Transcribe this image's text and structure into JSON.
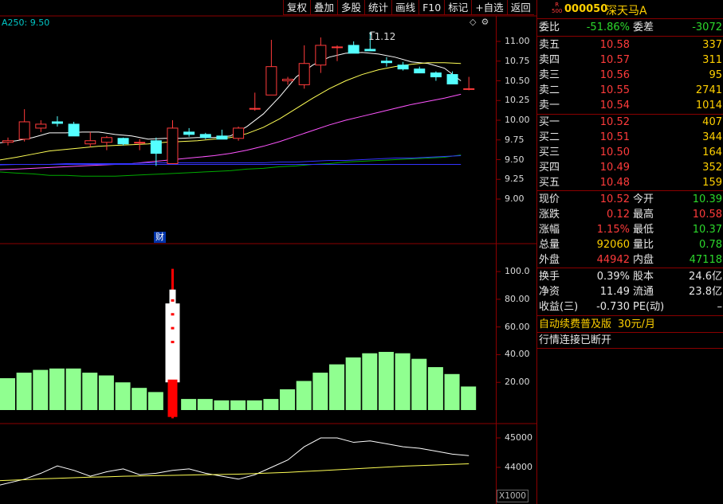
{
  "toolbar": [
    "复权",
    "叠加",
    "多股",
    "统计",
    "画线",
    "F10",
    "标记",
    "+自选",
    "返回"
  ],
  "ma_label": "A250: 9.50",
  "peak_price_label": "11.12",
  "fin_badge": "财",
  "unit_label": "X1000",
  "price_axis": [
    "11.00",
    "10.75",
    "10.50",
    "10.25",
    "10.00",
    "9.75",
    "9.50",
    "9.25",
    "9.00"
  ],
  "indicator_axis": [
    "100.0",
    "80.00",
    "60.00",
    "40.00",
    "20.00"
  ],
  "volume_axis": [
    "45000",
    "44000"
  ],
  "colors": {
    "up": "#ff3b3b",
    "down": "#54ffff",
    "ma5": "#ffffff",
    "ma10": "#ffff55",
    "ma20": "#ff55ff",
    "ma60": "#00aa00",
    "ma120": "#3333ff",
    "bar": "#90ff90"
  },
  "candles": [
    {
      "o": 9.72,
      "h": 9.78,
      "l": 9.68,
      "c": 9.74
    },
    {
      "o": 9.76,
      "h": 10.14,
      "l": 9.73,
      "c": 9.98
    },
    {
      "o": 9.9,
      "h": 10.0,
      "l": 9.85,
      "c": 9.95
    },
    {
      "o": 9.98,
      "h": 10.05,
      "l": 9.92,
      "c": 9.96
    },
    {
      "o": 9.95,
      "h": 9.98,
      "l": 9.8,
      "c": 9.8
    },
    {
      "o": 9.7,
      "h": 9.85,
      "l": 9.66,
      "c": 9.74
    },
    {
      "o": 9.72,
      "h": 9.8,
      "l": 9.62,
      "c": 9.78
    },
    {
      "o": 9.77,
      "h": 9.78,
      "l": 9.68,
      "c": 9.7
    },
    {
      "o": 9.72,
      "h": 9.76,
      "l": 9.62,
      "c": 9.72
    },
    {
      "o": 9.74,
      "h": 9.78,
      "l": 9.42,
      "c": 9.58
    },
    {
      "o": 9.45,
      "h": 10.0,
      "l": 9.45,
      "c": 9.9
    },
    {
      "o": 9.85,
      "h": 9.9,
      "l": 9.79,
      "c": 9.82
    },
    {
      "o": 9.82,
      "h": 9.84,
      "l": 9.76,
      "c": 9.78
    },
    {
      "o": 9.8,
      "h": 9.88,
      "l": 9.76,
      "c": 9.76
    },
    {
      "o": 9.77,
      "h": 9.92,
      "l": 9.74,
      "c": 9.9
    },
    {
      "o": 10.15,
      "h": 10.35,
      "l": 10.12,
      "c": 10.15
    },
    {
      "o": 10.32,
      "h": 11.02,
      "l": 10.32,
      "c": 10.68
    },
    {
      "o": 10.5,
      "h": 10.55,
      "l": 10.45,
      "c": 10.52
    },
    {
      "o": 10.45,
      "h": 10.95,
      "l": 10.4,
      "c": 10.72
    },
    {
      "o": 10.7,
      "h": 11.05,
      "l": 10.6,
      "c": 10.95
    },
    {
      "o": 10.93,
      "h": 10.95,
      "l": 10.75,
      "c": 10.93
    },
    {
      "o": 10.95,
      "h": 11.0,
      "l": 10.85,
      "c": 10.85
    },
    {
      "o": 10.9,
      "h": 11.12,
      "l": 10.88,
      "c": 10.88
    },
    {
      "o": 10.75,
      "h": 10.8,
      "l": 10.68,
      "c": 10.73
    },
    {
      "o": 10.7,
      "h": 10.74,
      "l": 10.63,
      "c": 10.65
    },
    {
      "o": 10.65,
      "h": 10.68,
      "l": 10.6,
      "c": 10.6
    },
    {
      "o": 10.6,
      "h": 10.62,
      "l": 10.5,
      "c": 10.55
    },
    {
      "o": 10.58,
      "h": 10.62,
      "l": 10.46,
      "c": 10.46
    },
    {
      "o": 10.4,
      "h": 10.55,
      "l": 10.38,
      "c": 10.4
    }
  ],
  "ma_lines": {
    "ma5": [
      9.7,
      9.74,
      9.78,
      9.84,
      9.84,
      9.85,
      9.85,
      9.82,
      9.8,
      9.76,
      9.77,
      9.77,
      9.78,
      9.78,
      9.8,
      9.92,
      10.08,
      10.3,
      10.55,
      10.7,
      10.8,
      10.85,
      10.86,
      10.84,
      10.8,
      10.74,
      10.72,
      10.66,
      10.5
    ],
    "ma10": [
      9.48,
      9.53,
      9.57,
      9.61,
      9.63,
      9.65,
      9.67,
      9.68,
      9.69,
      9.7,
      9.72,
      9.73,
      9.74,
      9.76,
      9.78,
      9.83,
      9.91,
      10.02,
      10.15,
      10.28,
      10.4,
      10.5,
      10.58,
      10.64,
      10.68,
      10.71,
      10.73,
      10.73,
      10.72
    ],
    "ma20": [
      9.37,
      9.38,
      9.39,
      9.4,
      9.41,
      9.42,
      9.43,
      9.44,
      9.45,
      9.47,
      9.49,
      9.51,
      9.53,
      9.55,
      9.58,
      9.62,
      9.67,
      9.73,
      9.8,
      9.87,
      9.94,
      10.0,
      10.05,
      10.1,
      10.15,
      10.2,
      10.24,
      10.28,
      10.33
    ],
    "ma60": [
      9.35,
      9.33,
      9.32,
      9.3,
      9.3,
      9.29,
      9.29,
      9.29,
      9.3,
      9.31,
      9.32,
      9.33,
      9.34,
      9.35,
      9.36,
      9.38,
      9.39,
      9.41,
      9.42,
      9.44,
      9.45,
      9.47,
      9.48,
      9.49,
      9.5,
      9.51,
      9.52,
      9.53,
      9.56
    ],
    "ma120": [
      9.43,
      9.44,
      9.44,
      9.44,
      9.45,
      9.45,
      9.45,
      9.45,
      9.45,
      9.46,
      9.46,
      9.46,
      9.46,
      9.46,
      9.46,
      9.46,
      9.46,
      9.47,
      9.47,
      9.48,
      9.49,
      9.49,
      9.5,
      9.51,
      9.52,
      9.52,
      9.53,
      9.54,
      9.55
    ],
    "flat": [
      9.44,
      9.44,
      9.44,
      9.44,
      9.44,
      9.44,
      9.44,
      9.44,
      9.44,
      9.44,
      9.44,
      9.44,
      9.44,
      9.44,
      9.44,
      9.44,
      9.44,
      9.44,
      9.44,
      9.44,
      9.44,
      9.44,
      9.44,
      9.44,
      9.44,
      9.44,
      9.44,
      9.44,
      9.44
    ]
  },
  "indicator_bars": [
    23,
    27,
    29,
    30,
    30,
    27,
    25,
    20,
    16,
    13,
    12,
    8,
    8,
    7,
    7,
    7,
    8,
    15,
    21,
    27,
    33,
    38,
    41,
    42,
    41,
    37,
    31,
    26,
    17
  ],
  "indicator_spike": {
    "index": 10,
    "top": 102,
    "body_top": 87,
    "body_bottom": 20,
    "bottom": -6
  },
  "volume_lines": {
    "white": [
      43400,
      43600,
      43800,
      44050,
      43900,
      43700,
      43850,
      43950,
      43750,
      43800,
      43900,
      43950,
      43800,
      43700,
      43600,
      43750,
      44000,
      44250,
      44700,
      45000,
      45000,
      44850,
      44900,
      44800,
      44700,
      44650,
      44550,
      44450,
      44400
    ],
    "yellow": [
      43550,
      43580,
      43610,
      43630,
      43650,
      43670,
      43680,
      43700,
      43710,
      43720,
      43730,
      43740,
      43750,
      43760,
      43770,
      43790,
      43810,
      43830,
      43860,
      43890,
      43920,
      43950,
      43980,
      44010,
      44040,
      44060,
      44080,
      44100,
      44120
    ]
  },
  "quote": {
    "badge_top": "R",
    "badge_bottom": "500",
    "code": "000050",
    "name": "深天马A",
    "weibi_label": "委比",
    "weibi_value": "-51.86%",
    "weicha_label": "委差",
    "weicha_value": "-3072",
    "asks": [
      {
        "label": "卖五",
        "price": "10.58",
        "vol": "337"
      },
      {
        "label": "卖四",
        "price": "10.57",
        "vol": "311"
      },
      {
        "label": "卖三",
        "price": "10.56",
        "vol": "95"
      },
      {
        "label": "卖二",
        "price": "10.55",
        "vol": "2741"
      },
      {
        "label": "卖一",
        "price": "10.54",
        "vol": "1014"
      }
    ],
    "bids": [
      {
        "label": "买一",
        "price": "10.52",
        "vol": "407"
      },
      {
        "label": "买二",
        "price": "10.51",
        "vol": "344"
      },
      {
        "label": "买三",
        "price": "10.50",
        "vol": "164"
      },
      {
        "label": "买四",
        "price": "10.49",
        "vol": "352"
      },
      {
        "label": "买五",
        "price": "10.48",
        "vol": "159"
      }
    ],
    "stats": [
      {
        "l": "现价",
        "v": "10.52",
        "vc": "red",
        "l2": "今开",
        "v2": "10.39",
        "v2c": "green"
      },
      {
        "l": "涨跌",
        "v": "0.12",
        "vc": "red",
        "l2": "最高",
        "v2": "10.58",
        "v2c": "red"
      },
      {
        "l": "涨幅",
        "v": "1.15%",
        "vc": "red",
        "l2": "最低",
        "v2": "10.37",
        "v2c": "green"
      },
      {
        "l": "总量",
        "v": "92060",
        "vc": "yellow",
        "l2": "量比",
        "v2": "0.78",
        "v2c": "green"
      },
      {
        "l": "外盘",
        "v": "44942",
        "vc": "red",
        "l2": "内盘",
        "v2": "47118",
        "v2c": "green"
      }
    ],
    "fund": [
      {
        "l": "换手",
        "v": "0.39%",
        "l2": "股本",
        "v2": "24.6亿"
      },
      {
        "l": "净资",
        "v": "11.49",
        "l2": "流通",
        "v2": "23.8亿"
      },
      {
        "l": "收益(三)",
        "v": "-0.730",
        "l2": "PE(动)",
        "v2": "–"
      }
    ],
    "promo_text": "自动续费普及版",
    "promo_price": "30元/月",
    "status_text": "行情连接已断开"
  }
}
